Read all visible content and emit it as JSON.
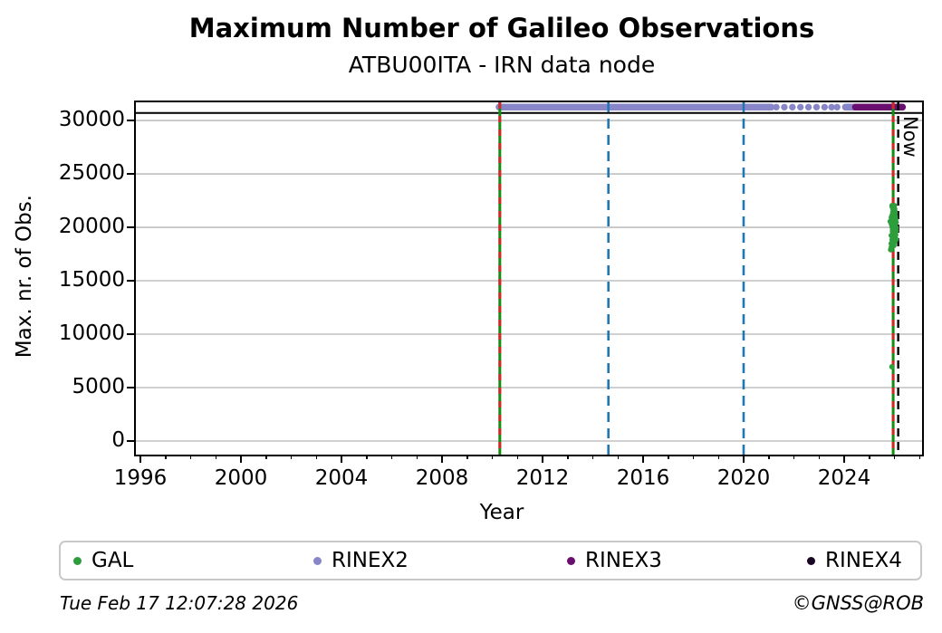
{
  "chart_data": {
    "type": "scatter",
    "title": "Maximum Number of Galileo Observations",
    "subtitle": "ATBU00ITA - IRN data node",
    "xlabel": "Year",
    "ylabel": "Max. nr. of Obs.",
    "xlim": [
      1995.82,
      2027.1
    ],
    "ylim": [
      -1270,
      31700
    ],
    "xticks": [
      1996,
      2000,
      2004,
      2008,
      2012,
      2016,
      2020,
      2024
    ],
    "minor_xtick_years": [
      1997,
      1998,
      1999,
      2001,
      2002,
      2003,
      2005,
      2006,
      2007,
      2009,
      2010,
      2011,
      2013,
      2014,
      2015,
      2017,
      2018,
      2019,
      2021,
      2022,
      2023,
      2025,
      2026,
      2027
    ],
    "yticks": [
      0,
      5000,
      10000,
      15000,
      20000,
      25000,
      30000
    ],
    "grid": "horizontal",
    "grid_color": "#b4b4b4",
    "max_line": {
      "value": 30700,
      "color": "#000000"
    },
    "series": [
      {
        "name": "GAL",
        "color": "#2e9e3c",
        "type": "cluster",
        "cluster": {
          "x_center": 2025.96,
          "x_sigma": 0.055,
          "x_range": [
            2025.79,
            2026.1
          ],
          "y_center": 20150,
          "y_sigma": 950,
          "y_range": [
            18300,
            22050
          ],
          "n_dots": 140
        },
        "outliers": [
          [
            2025.85,
            17900
          ],
          [
            2025.88,
            18150
          ],
          [
            2025.9,
            6950
          ]
        ]
      },
      {
        "name": "RINEX2",
        "color": "#8886c8",
        "y_value": 31250,
        "solid_ranges": [
          [
            2010.27,
            2021.1
          ],
          [
            2024.05,
            2024.45
          ]
        ],
        "dot_xs": [
          2021.3,
          2021.62,
          2021.94,
          2022.26,
          2022.58,
          2022.9,
          2023.22,
          2023.5,
          2023.72
        ]
      },
      {
        "name": "RINEX3",
        "color": "#6a0f70",
        "y_value": 31250,
        "solid_ranges": [
          [
            2024.45,
            2026.32
          ]
        ],
        "dot_xs": []
      },
      {
        "name": "RINEX4",
        "color": "#1a0524",
        "y_value": null,
        "solid_ranges": [],
        "dot_xs": []
      }
    ],
    "vlines": [
      {
        "x": 2010.3,
        "style": "green-red",
        "label": ""
      },
      {
        "x": 2014.62,
        "style": "blue-dashed",
        "label": ""
      },
      {
        "x": 2020.0,
        "style": "blue-dashed",
        "label": ""
      },
      {
        "x": 2025.95,
        "style": "green-red",
        "label": ""
      },
      {
        "x": 2026.15,
        "style": "black-dashed",
        "label": "Now"
      }
    ],
    "line_colors": {
      "green": "#148c14",
      "red": "#d62728",
      "blue": "#1f77b4",
      "black": "#000000"
    }
  },
  "legend": {
    "items": [
      {
        "label": "GAL",
        "color": "#2e9e3c"
      },
      {
        "label": "RINEX2",
        "color": "#8886c8"
      },
      {
        "label": "RINEX3",
        "color": "#6a0f70"
      },
      {
        "label": "RINEX4",
        "color": "#1a0524"
      }
    ]
  },
  "footer": {
    "timestamp": "Tue Feb 17 12:07:28 2026",
    "credit": "©GNSS@ROB"
  }
}
